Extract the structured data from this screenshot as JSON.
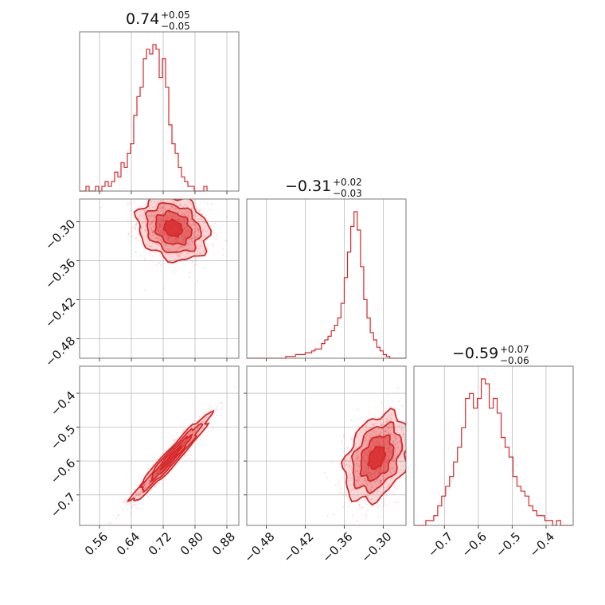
{
  "colors": {
    "series": "#d62728",
    "grid": "#bdbdbd",
    "frame": "#777777"
  },
  "panels": {
    "titles": {
      "p0": {
        "main": "0.74",
        "plus": "+0.05",
        "minus": "−0.05"
      },
      "p1": {
        "main": "−0.31",
        "plus": "+0.02",
        "minus": "−0.03"
      },
      "p2": {
        "main": "−0.59",
        "plus": "+0.07",
        "minus": "−0.06"
      }
    }
  },
  "chart_data": {
    "type": "corner",
    "parameters": [
      {
        "index": 0,
        "median": 0.74,
        "err_plus": 0.05,
        "err_minus": 0.05,
        "range": [
          0.51,
          0.91
        ],
        "ticks": [
          0.56,
          0.64,
          0.72,
          0.8,
          0.88
        ],
        "tick_labels": [
          "0.56",
          "0.64",
          "0.72",
          "0.80",
          "0.88"
        ]
      },
      {
        "index": 1,
        "median": -0.31,
        "err_plus": 0.02,
        "err_minus": 0.03,
        "range": [
          -0.51,
          -0.265
        ],
        "ticks": [
          -0.48,
          -0.42,
          -0.36,
          -0.3
        ],
        "tick_labels": [
          "−0.48",
          "−0.42",
          "−0.36",
          "−0.30"
        ]
      },
      {
        "index": 2,
        "median": -0.59,
        "err_plus": 0.07,
        "err_minus": 0.06,
        "range": [
          -0.79,
          -0.32
        ],
        "ticks": [
          -0.7,
          -0.6,
          -0.5,
          -0.4
        ],
        "tick_labels": [
          "−0.7",
          "−0.6",
          "−0.5",
          "−0.4"
        ]
      }
    ],
    "histograms": {
      "p0": {
        "bin_start": 0.51,
        "bin_width": 0.008,
        "counts": [
          0,
          0,
          1,
          0,
          0,
          1,
          0,
          1,
          2,
          1,
          2,
          4,
          3,
          6,
          5,
          8,
          10,
          16,
          20,
          22,
          28,
          30,
          29,
          31,
          30,
          24,
          28,
          22,
          14,
          10,
          8,
          5,
          3,
          2,
          1,
          1,
          0,
          0,
          0,
          1
        ]
      },
      "p1": {
        "bin_start": -0.51,
        "bin_width": 0.005,
        "counts": [
          0,
          0,
          0,
          0,
          0,
          0,
          0,
          0,
          0,
          0,
          0,
          0,
          1,
          1,
          1,
          2,
          2,
          2,
          3,
          3,
          4,
          5,
          5,
          8,
          10,
          12,
          15,
          18,
          22,
          30,
          44,
          58,
          72,
          80,
          70,
          50,
          32,
          22,
          14,
          10,
          6,
          4,
          2,
          1,
          0,
          0,
          0,
          0,
          0
        ]
      },
      "p2": {
        "bin_start": -0.79,
        "bin_width": 0.0117,
        "counts": [
          0,
          0,
          0,
          1,
          1,
          2,
          4,
          6,
          8,
          10,
          13,
          16,
          20,
          26,
          27,
          24,
          26,
          30,
          29,
          24,
          26,
          23,
          18,
          16,
          14,
          10,
          8,
          7,
          6,
          4,
          3,
          2,
          2,
          1,
          1,
          0,
          1,
          0,
          0,
          0
        ]
      }
    },
    "pairs": [
      {
        "x": "p0",
        "y": "p1",
        "center": [
          0.745,
          -0.31
        ],
        "sd": [
          0.045,
          0.025
        ],
        "corr": -0.2
      },
      {
        "x": "p0",
        "y": "p2",
        "center": [
          0.74,
          -0.59
        ],
        "sd": [
          0.05,
          0.065
        ],
        "corr": 0.97
      },
      {
        "x": "p1",
        "y": "p2",
        "center": [
          -0.31,
          -0.59
        ],
        "sd": [
          0.025,
          0.065
        ],
        "corr": 0.35
      }
    ]
  }
}
